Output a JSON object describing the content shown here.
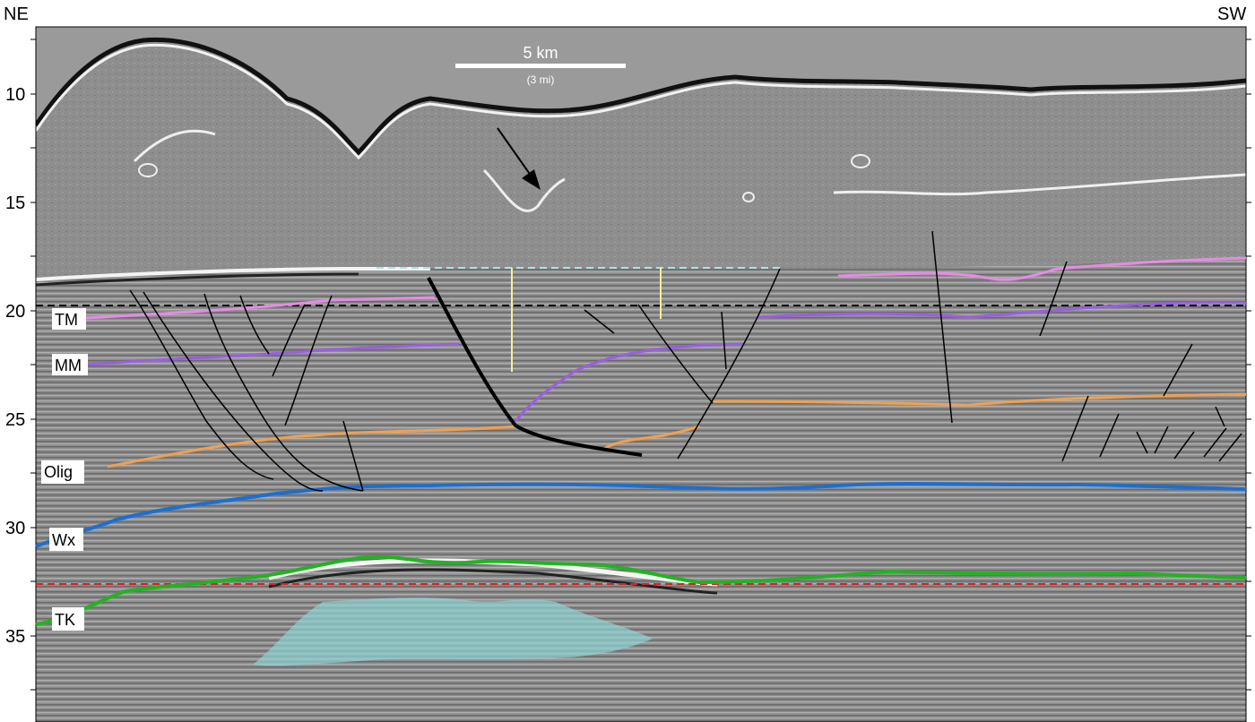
{
  "orientation": {
    "left": "NE",
    "right": "SW"
  },
  "depth_ticks": [
    "10",
    "15",
    "20",
    "25",
    "30",
    "35"
  ],
  "scale_bar": {
    "label": "5 km",
    "sublabel": "(3 mi)"
  },
  "horizons": [
    {
      "name": "TM",
      "color": "#e58be5"
    },
    {
      "name": "MM",
      "color": "#9b5de5"
    },
    {
      "name": "Olig",
      "color": "#f0a050"
    },
    {
      "name": "Wx",
      "color": "#1c6fd1"
    },
    {
      "name": "TK",
      "color": "#22b322"
    }
  ],
  "colors": {
    "seismic_background": "#8a8a8a",
    "dashed_cyan": "#a9e6e6",
    "dashed_black": "#000000",
    "dashed_red": "#e02020",
    "pale_yellow": "#f3f0a0",
    "cyan_body": "#8fd4d4"
  }
}
